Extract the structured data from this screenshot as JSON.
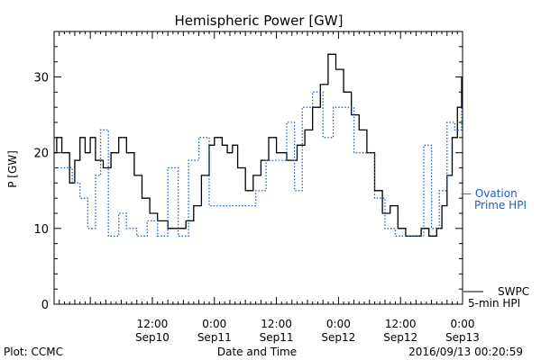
{
  "chart_data": {
    "type": "line",
    "title": "Hemispheric Power [GW]",
    "xlabel": "Date and Time",
    "ylabel": "P [GW]",
    "ylim": [
      0,
      36
    ],
    "yticks": [
      0,
      10,
      20,
      30
    ],
    "xlim": [
      "2016-09-09T17:00",
      "2016-09-13T00:00"
    ],
    "x_ticks": [
      {
        "time": "2016-09-10T12:00",
        "label_top": "12:00",
        "label_bottom": "Sep10"
      },
      {
        "time": "2016-09-11T00:00",
        "label_top": "0:00",
        "label_bottom": "Sep11"
      },
      {
        "time": "2016-09-11T12:00",
        "label_top": "12:00",
        "label_bottom": "Sep11"
      },
      {
        "time": "2016-09-12T00:00",
        "label_top": "0:00",
        "label_bottom": "Sep12"
      },
      {
        "time": "2016-09-12T12:00",
        "label_top": "12:00",
        "label_bottom": "Sep12"
      },
      {
        "time": "2016-09-13T00:00",
        "label_top": "0:00",
        "label_bottom": "Sep13"
      }
    ],
    "series": [
      {
        "name": "SWPC 5-min HPI",
        "label_lines": [
          "SWPC",
          "5-min HPI"
        ],
        "color": "#000000",
        "style": "solid",
        "points": [
          [
            "2016-09-09T17:01",
            20
          ],
          [
            "2016-09-09T17:30",
            22
          ],
          [
            "2016-09-09T18:30",
            20
          ],
          [
            "2016-09-09T20:00",
            16
          ],
          [
            "2016-09-09T21:00",
            19
          ],
          [
            "2016-09-09T22:00",
            22
          ],
          [
            "2016-09-09T23:00",
            20
          ],
          [
            "2016-09-10T00:00",
            22
          ],
          [
            "2016-09-10T01:00",
            19
          ],
          [
            "2016-09-10T02:30",
            18
          ],
          [
            "2016-09-10T04:00",
            20
          ],
          [
            "2016-09-10T05:30",
            22
          ],
          [
            "2016-09-10T07:00",
            20
          ],
          [
            "2016-09-10T08:30",
            17
          ],
          [
            "2016-09-10T10:00",
            14
          ],
          [
            "2016-09-10T11:30",
            12
          ],
          [
            "2016-09-10T13:00",
            11
          ],
          [
            "2016-09-10T15:00",
            10
          ],
          [
            "2016-09-10T17:00",
            10
          ],
          [
            "2016-09-10T18:30",
            11
          ],
          [
            "2016-09-10T20:00",
            13
          ],
          [
            "2016-09-10T21:30",
            17
          ],
          [
            "2016-09-10T23:00",
            21
          ],
          [
            "2016-09-11T00:00",
            22
          ],
          [
            "2016-09-11T01:30",
            21
          ],
          [
            "2016-09-11T02:30",
            20
          ],
          [
            "2016-09-11T03:30",
            21
          ],
          [
            "2016-09-11T04:30",
            18
          ],
          [
            "2016-09-11T06:00",
            15
          ],
          [
            "2016-09-11T07:30",
            17
          ],
          [
            "2016-09-11T09:00",
            19
          ],
          [
            "2016-09-11T10:30",
            22
          ],
          [
            "2016-09-11T12:00",
            20
          ],
          [
            "2016-09-11T14:00",
            19
          ],
          [
            "2016-09-11T16:00",
            21
          ],
          [
            "2016-09-11T17:30",
            23
          ],
          [
            "2016-09-11T19:00",
            26
          ],
          [
            "2016-09-11T20:30",
            29
          ],
          [
            "2016-09-11T22:00",
            33
          ],
          [
            "2016-09-11T23:30",
            31
          ],
          [
            "2016-09-12T01:00",
            28
          ],
          [
            "2016-09-12T02:30",
            25
          ],
          [
            "2016-09-12T04:00",
            23
          ],
          [
            "2016-09-12T05:30",
            20
          ],
          [
            "2016-09-12T07:00",
            15
          ],
          [
            "2016-09-12T08:30",
            12
          ],
          [
            "2016-09-12T10:00",
            13
          ],
          [
            "2016-09-12T11:30",
            10
          ],
          [
            "2016-09-12T13:00",
            9
          ],
          [
            "2016-09-12T14:30",
            9
          ],
          [
            "2016-09-12T16:00",
            10
          ],
          [
            "2016-09-12T17:30",
            9
          ],
          [
            "2016-09-12T19:00",
            10
          ],
          [
            "2016-09-12T20:00",
            13
          ],
          [
            "2016-09-12T21:00",
            17
          ],
          [
            "2016-09-12T22:00",
            22
          ],
          [
            "2016-09-12T23:00",
            26
          ],
          [
            "2016-09-12T23:50",
            30
          ]
        ]
      },
      {
        "name": "Ovation Prime HPI",
        "label_lines": [
          "— Ovation",
          "Prime HPI"
        ],
        "color": "#1f5fbf",
        "style": "dotted",
        "points": [
          [
            "2016-09-09T17:01",
            18
          ],
          [
            "2016-09-09T19:00",
            18
          ],
          [
            "2016-09-09T20:30",
            16
          ],
          [
            "2016-09-09T22:00",
            14
          ],
          [
            "2016-09-09T23:30",
            10
          ],
          [
            "2016-09-10T01:00",
            17
          ],
          [
            "2016-09-10T02:00",
            23
          ],
          [
            "2016-09-10T03:30",
            9
          ],
          [
            "2016-09-10T05:30",
            12
          ],
          [
            "2016-09-10T07:00",
            10
          ],
          [
            "2016-09-10T09:00",
            9
          ],
          [
            "2016-09-10T11:00",
            11
          ],
          [
            "2016-09-10T13:00",
            9
          ],
          [
            "2016-09-10T15:00",
            18
          ],
          [
            "2016-09-10T17:00",
            9
          ],
          [
            "2016-09-10T19:00",
            19
          ],
          [
            "2016-09-10T21:00",
            22
          ],
          [
            "2016-09-10T23:00",
            13
          ],
          [
            "2016-09-11T02:00",
            13
          ],
          [
            "2016-09-11T05:00",
            13
          ],
          [
            "2016-09-11T08:00",
            15
          ],
          [
            "2016-09-11T10:00",
            19
          ],
          [
            "2016-09-11T12:00",
            19
          ],
          [
            "2016-09-11T14:00",
            24
          ],
          [
            "2016-09-11T15:30",
            15
          ],
          [
            "2016-09-11T17:00",
            26
          ],
          [
            "2016-09-11T19:00",
            28
          ],
          [
            "2016-09-11T21:00",
            22
          ],
          [
            "2016-09-11T23:00",
            26
          ],
          [
            "2016-09-12T01:00",
            26
          ],
          [
            "2016-09-12T03:00",
            20
          ],
          [
            "2016-09-12T05:00",
            20
          ],
          [
            "2016-09-12T07:00",
            14
          ],
          [
            "2016-09-12T09:00",
            10
          ],
          [
            "2016-09-12T11:00",
            9
          ],
          [
            "2016-09-12T13:00",
            9
          ],
          [
            "2016-09-12T15:00",
            9
          ],
          [
            "2016-09-12T16:30",
            21
          ],
          [
            "2016-09-12T18:00",
            10
          ],
          [
            "2016-09-12T19:30",
            15
          ],
          [
            "2016-09-12T21:00",
            24
          ],
          [
            "2016-09-12T22:30",
            23
          ],
          [
            "2016-09-12T23:50",
            26
          ]
        ]
      }
    ]
  },
  "footer": {
    "plot_credit": "Plot: CCMC",
    "timestamp": "2016/09/13 00:20:59"
  }
}
